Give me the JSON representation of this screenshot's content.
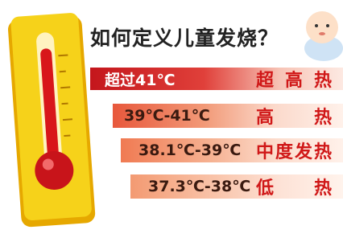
{
  "header": {
    "title": "如何定义儿童发烧？"
  },
  "rows": [
    {
      "range": "超过41℃",
      "level": "超高热"
    },
    {
      "range": "39℃-41℃",
      "level": "高热"
    },
    {
      "range": "38.1℃-39℃",
      "level": "中度发热"
    },
    {
      "range": "37.3℃-38℃",
      "level": "低热"
    }
  ]
}
